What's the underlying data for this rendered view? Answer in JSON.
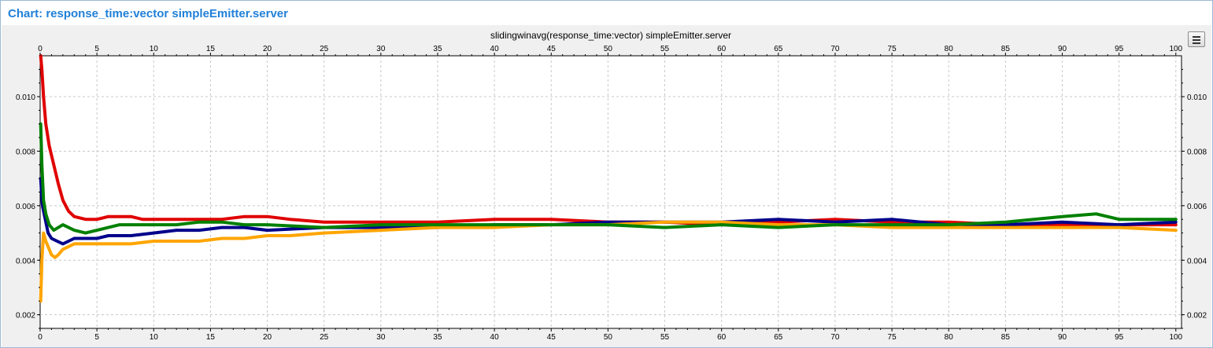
{
  "window": {
    "title": "Chart: response_time:vector simpleEmitter.server"
  },
  "chart_data": {
    "type": "line",
    "title": "slidingwinavg(response_time:vector) simpleEmitter.server",
    "xlim": [
      0,
      100.5
    ],
    "ylim": [
      0.0015,
      0.0115
    ],
    "x_ticks": [
      0,
      5,
      10,
      15,
      20,
      25,
      30,
      35,
      40,
      45,
      50,
      55,
      60,
      65,
      70,
      75,
      80,
      85,
      90,
      95,
      100
    ],
    "y_ticks": [
      0.002,
      0.004,
      0.006,
      0.008,
      0.01
    ],
    "y_tick_labels": [
      "0.002",
      "0.004",
      "0.006",
      "0.008",
      "0.010"
    ],
    "grid": true,
    "series": [
      {
        "color": "#e00000",
        "x": [
          0.05,
          0.15,
          0.3,
          0.5,
          0.8,
          1.2,
          1.6,
          2.0,
          2.5,
          3,
          4,
          5,
          6,
          7,
          8,
          9,
          10,
          12,
          14,
          16,
          18,
          20,
          22,
          25,
          28,
          30,
          35,
          40,
          45,
          50,
          55,
          60,
          65,
          70,
          75,
          80,
          85,
          90,
          95,
          100
        ],
        "y": [
          0.0115,
          0.011,
          0.01,
          0.009,
          0.0082,
          0.0075,
          0.0068,
          0.0062,
          0.0058,
          0.0056,
          0.0055,
          0.0055,
          0.0056,
          0.0056,
          0.0056,
          0.0055,
          0.0055,
          0.0055,
          0.0055,
          0.0055,
          0.0056,
          0.0056,
          0.0055,
          0.0054,
          0.0054,
          0.0054,
          0.0054,
          0.0055,
          0.0055,
          0.0054,
          0.0054,
          0.0053,
          0.0054,
          0.0055,
          0.0054,
          0.0054,
          0.0053,
          0.0053,
          0.0053,
          0.0053
        ]
      },
      {
        "color": "#00008b",
        "x": [
          0.05,
          0.2,
          0.4,
          0.7,
          1.0,
          1.5,
          2,
          2.5,
          3,
          4,
          5,
          6,
          7,
          8,
          10,
          12,
          14,
          16,
          18,
          20,
          25,
          30,
          35,
          40,
          45,
          50,
          55,
          60,
          65,
          70,
          75,
          80,
          85,
          90,
          95,
          100
        ],
        "y": [
          0.007,
          0.006,
          0.0056,
          0.005,
          0.0048,
          0.0047,
          0.0046,
          0.0047,
          0.0048,
          0.0048,
          0.0048,
          0.0049,
          0.0049,
          0.0049,
          0.005,
          0.0051,
          0.0051,
          0.0052,
          0.0052,
          0.0051,
          0.0052,
          0.0052,
          0.0052,
          0.0053,
          0.0053,
          0.0054,
          0.0054,
          0.0054,
          0.0055,
          0.0054,
          0.0055,
          0.0053,
          0.0053,
          0.0054,
          0.0053,
          0.0054
        ]
      },
      {
        "color": "#ffa500",
        "x": [
          0.05,
          0.15,
          0.3,
          0.5,
          0.8,
          1.0,
          1.3,
          1.6,
          2,
          2.5,
          3,
          4,
          5,
          6,
          7,
          8,
          10,
          12,
          14,
          16,
          18,
          20,
          22,
          25,
          30,
          35,
          40,
          45,
          50,
          55,
          60,
          65,
          70,
          75,
          80,
          85,
          90,
          95,
          100
        ],
        "y": [
          0.0025,
          0.004,
          0.005,
          0.0047,
          0.0044,
          0.0042,
          0.0041,
          0.0042,
          0.0044,
          0.0045,
          0.0046,
          0.0046,
          0.0046,
          0.0046,
          0.0046,
          0.0046,
          0.0047,
          0.0047,
          0.0047,
          0.0048,
          0.0048,
          0.0049,
          0.0049,
          0.005,
          0.0051,
          0.0052,
          0.0052,
          0.0053,
          0.0053,
          0.0054,
          0.0054,
          0.0053,
          0.0053,
          0.0052,
          0.0052,
          0.0052,
          0.0052,
          0.0052,
          0.0051
        ]
      },
      {
        "color": "#008000",
        "x": [
          0.05,
          0.15,
          0.3,
          0.5,
          0.8,
          1.2,
          1.6,
          2.0,
          2.5,
          3,
          4,
          5,
          6,
          7,
          8,
          10,
          12,
          14,
          16,
          18,
          20,
          25,
          30,
          35,
          40,
          45,
          50,
          55,
          60,
          65,
          70,
          75,
          80,
          85,
          90,
          93,
          95,
          100
        ],
        "y": [
          0.009,
          0.0075,
          0.0062,
          0.0057,
          0.0053,
          0.0051,
          0.0052,
          0.0053,
          0.0052,
          0.0051,
          0.005,
          0.0051,
          0.0052,
          0.0053,
          0.0053,
          0.0053,
          0.0053,
          0.0054,
          0.0054,
          0.0053,
          0.0053,
          0.0052,
          0.0053,
          0.0053,
          0.0053,
          0.0053,
          0.0053,
          0.0052,
          0.0053,
          0.0052,
          0.0053,
          0.0053,
          0.0053,
          0.0054,
          0.0056,
          0.0057,
          0.0055,
          0.0055
        ]
      }
    ]
  }
}
